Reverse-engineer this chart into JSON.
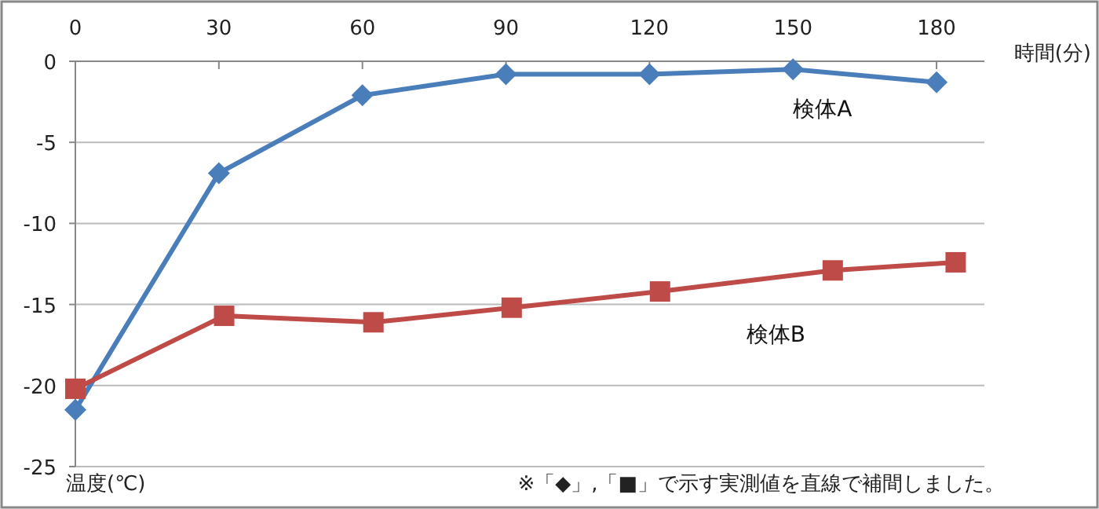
{
  "chart_data": {
    "type": "line",
    "xlabel": "時間(分)",
    "xlim": [
      0,
      190
    ],
    "xticks": [
      0,
      30,
      60,
      90,
      120,
      150,
      180
    ],
    "ylim": [
      -25,
      0
    ],
    "yticks": [
      0,
      -5,
      -10,
      -15,
      -20,
      -25
    ],
    "grid": "y",
    "series": [
      {
        "name": "検体A",
        "color": "#4a7ebb",
        "marker": "diamond",
        "x": [
          0,
          30,
          60,
          90,
          120,
          150,
          180
        ],
        "values": [
          -21.5,
          -6.9,
          -2.1,
          -0.8,
          -0.8,
          -0.5,
          -1.3
        ]
      },
      {
        "name": "検体B",
        "color": "#be4b48",
        "marker": "square",
        "x": [
          0,
          31.1,
          62.3,
          91.2,
          122.2,
          158.3,
          184
        ],
        "values": [
          -20.2,
          -15.7,
          -16.1,
          -15.2,
          -14.2,
          -12.9,
          -12.4
        ]
      }
    ],
    "annotations": [
      "温度(℃)",
      "※「◆」,「■」で示す実測値を直線で補間しました。"
    ]
  }
}
